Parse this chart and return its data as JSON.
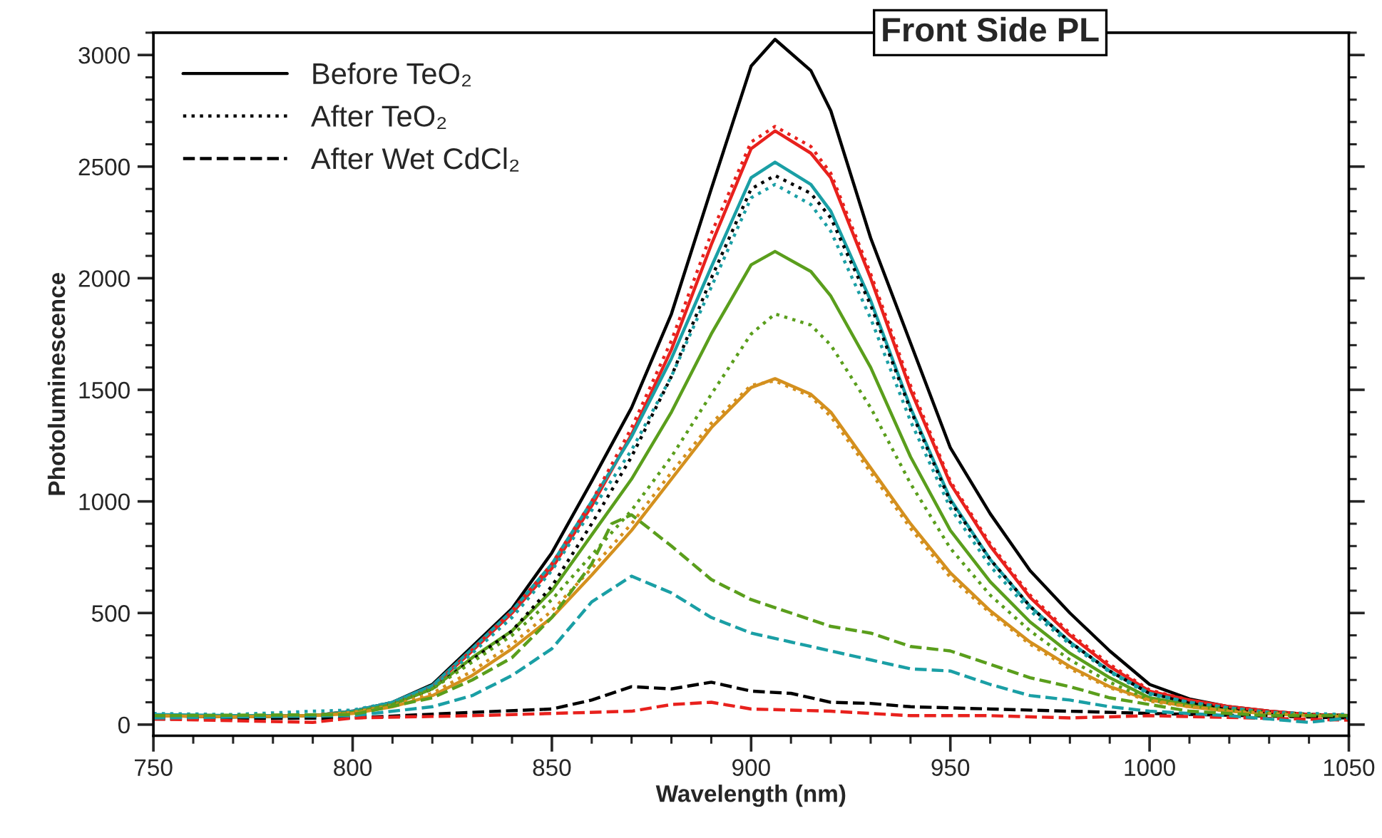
{
  "chart_data": {
    "type": "line",
    "title": "Front Side PL",
    "xlabel": "Wavelength (nm)",
    "ylabel": "Photoluminescence",
    "x": [
      750,
      770,
      790,
      800,
      810,
      820,
      830,
      840,
      850,
      860,
      870,
      880,
      890,
      900,
      906,
      915,
      920,
      930,
      940,
      950,
      960,
      970,
      980,
      990,
      1000,
      1010,
      1020,
      1030,
      1040,
      1050
    ],
    "series": [
      {
        "name": "Before TeO₂",
        "color": "#000000",
        "line_style": "solid",
        "values": [
          40,
          35,
          40,
          60,
          100,
          180,
          350,
          520,
          770,
          1090,
          1420,
          1840,
          2400,
          2950,
          3070,
          2930,
          2750,
          2180,
          1710,
          1240,
          945,
          690,
          500,
          330,
          180,
          115,
          80,
          60,
          45,
          40
        ]
      },
      {
        "color": "#e8211d",
        "line_style": "solid",
        "values": [
          40,
          35,
          40,
          60,
          95,
          170,
          330,
          500,
          700,
          980,
          1300,
          1680,
          2150,
          2580,
          2660,
          2560,
          2450,
          2000,
          1500,
          1080,
          800,
          570,
          400,
          260,
          150,
          110,
          80,
          60,
          45,
          40
        ]
      },
      {
        "color": "#1a9fa5",
        "line_style": "solid",
        "values": [
          45,
          40,
          40,
          60,
          100,
          175,
          340,
          510,
          720,
          1000,
          1290,
          1640,
          2050,
          2450,
          2520,
          2420,
          2300,
          1900,
          1420,
          1010,
          740,
          530,
          370,
          240,
          140,
          100,
          75,
          55,
          40,
          35
        ]
      },
      {
        "color": "#5a9e1c",
        "line_style": "solid",
        "values": [
          40,
          35,
          40,
          55,
          90,
          160,
          300,
          420,
          600,
          850,
          1100,
          1400,
          1750,
          2060,
          2120,
          2030,
          1920,
          1600,
          1200,
          870,
          640,
          460,
          320,
          210,
          120,
          90,
          70,
          55,
          45,
          40
        ]
      },
      {
        "color": "#d4901e",
        "line_style": "solid",
        "values": [
          40,
          35,
          40,
          50,
          80,
          130,
          220,
          340,
          480,
          670,
          870,
          1100,
          1330,
          1510,
          1550,
          1480,
          1400,
          1150,
          900,
          680,
          510,
          370,
          260,
          170,
          110,
          80,
          60,
          50,
          40,
          35
        ]
      },
      {
        "name": "After TeO₂",
        "color": "#000000",
        "line_style": "dotted",
        "values": [
          40,
          35,
          40,
          55,
          90,
          160,
          290,
          420,
          620,
          900,
          1200,
          1560,
          2000,
          2400,
          2460,
          2380,
          2270,
          1880,
          1410,
          1000,
          740,
          530,
          370,
          240,
          140,
          100,
          75,
          55,
          45,
          40
        ]
      },
      {
        "color": "#e8211d",
        "line_style": "dotted",
        "values": [
          40,
          35,
          40,
          60,
          95,
          170,
          335,
          510,
          720,
          1000,
          1330,
          1720,
          2200,
          2610,
          2680,
          2590,
          2470,
          2020,
          1520,
          1090,
          810,
          580,
          410,
          270,
          155,
          110,
          80,
          60,
          45,
          40
        ]
      },
      {
        "color": "#1a9fa5",
        "line_style": "dotted",
        "values": [
          50,
          45,
          60,
          65,
          100,
          170,
          320,
          480,
          690,
          960,
          1230,
          1560,
          1960,
          2360,
          2420,
          2330,
          2210,
          1820,
          1360,
          970,
          710,
          510,
          360,
          235,
          135,
          100,
          75,
          55,
          50,
          45
        ]
      },
      {
        "color": "#5a9e1c",
        "line_style": "dotted",
        "values": [
          40,
          35,
          40,
          55,
          90,
          160,
          280,
          400,
          560,
          760,
          960,
          1200,
          1480,
          1750,
          1840,
          1790,
          1700,
          1420,
          1080,
          790,
          580,
          420,
          290,
          190,
          110,
          85,
          65,
          50,
          40,
          35
        ]
      },
      {
        "color": "#d4901e",
        "line_style": "dotted",
        "values": [
          40,
          35,
          40,
          55,
          85,
          140,
          240,
          360,
          510,
          700,
          900,
          1130,
          1350,
          1520,
          1540,
          1470,
          1380,
          1130,
          880,
          660,
          500,
          360,
          250,
          165,
          105,
          80,
          60,
          50,
          40,
          35
        ]
      },
      {
        "name": "After Wet CdCl₂",
        "color": "#000000",
        "line_style": "dashed",
        "x": [
          750,
          800,
          830,
          850,
          860,
          870,
          880,
          890,
          900,
          910,
          920,
          930,
          940,
          960,
          980,
          1000,
          1050
        ],
        "values": [
          25,
          30,
          55,
          70,
          110,
          170,
          160,
          190,
          150,
          140,
          100,
          95,
          80,
          70,
          60,
          50,
          30
        ]
      },
      {
        "color": "#e8211d",
        "line_style": "dashed",
        "x": [
          750,
          790,
          800,
          830,
          850,
          870,
          880,
          890,
          900,
          920,
          940,
          960,
          980,
          1000,
          1050
        ],
        "values": [
          25,
          10,
          30,
          40,
          50,
          60,
          90,
          100,
          70,
          60,
          40,
          40,
          30,
          40,
          20
        ]
      },
      {
        "color": "#1a9fa5",
        "line_style": "dashed",
        "x": [
          750,
          800,
          820,
          830,
          840,
          850,
          860,
          870,
          880,
          890,
          900,
          910,
          920,
          930,
          940,
          950,
          960,
          970,
          980,
          990,
          1000,
          1020,
          1040,
          1050
        ],
        "values": [
          30,
          40,
          80,
          130,
          220,
          340,
          550,
          665,
          590,
          480,
          410,
          370,
          330,
          290,
          250,
          240,
          180,
          130,
          110,
          80,
          60,
          40,
          10,
          30
        ]
      },
      {
        "color": "#5a9e1c",
        "line_style": "dashed",
        "x": [
          750,
          800,
          820,
          830,
          840,
          850,
          860,
          865,
          870,
          880,
          890,
          900,
          910,
          920,
          930,
          940,
          950,
          960,
          970,
          980,
          990,
          1000,
          1010,
          1020,
          1030,
          1050
        ],
        "values": [
          40,
          45,
          120,
          200,
          300,
          480,
          720,
          900,
          940,
          800,
          650,
          560,
          500,
          440,
          410,
          350,
          330,
          270,
          210,
          170,
          120,
          90,
          60,
          50,
          40,
          40
        ]
      }
    ],
    "xlim": [
      750,
      1050
    ],
    "ylim": [
      -50,
      3100
    ],
    "xticks": [
      750,
      800,
      850,
      900,
      950,
      1000,
      1050
    ],
    "yticks": [
      0,
      500,
      1000,
      1500,
      2000,
      2500,
      3000
    ],
    "grid": false,
    "legend": "top left",
    "marker": "none"
  }
}
